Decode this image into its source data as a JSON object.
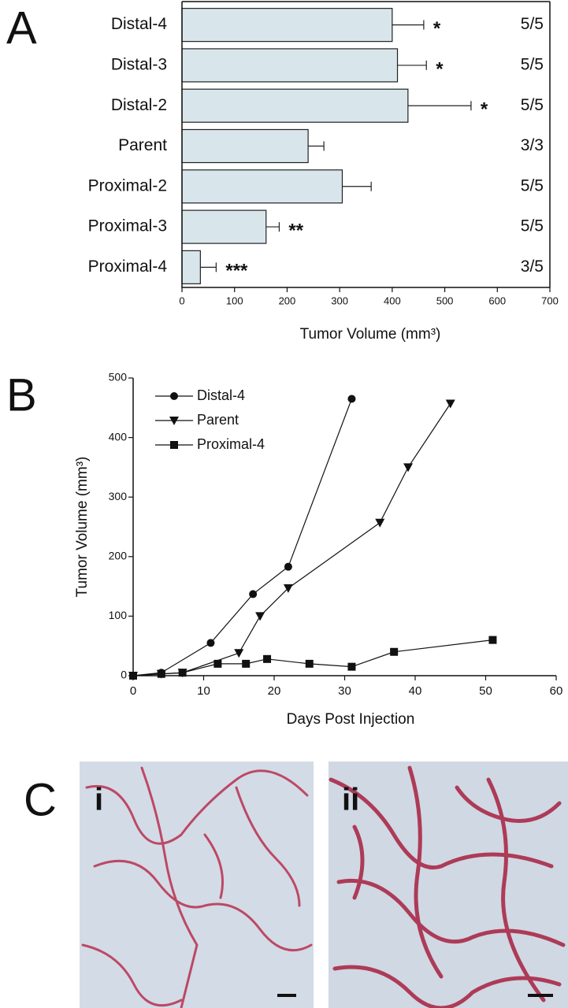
{
  "chart_data": [
    {
      "type": "hbar",
      "panel_label": "A",
      "categories": [
        "Distal-4",
        "Distal-3",
        "Distal-2",
        "Parent",
        "Proximal-2",
        "Proximal-3",
        "Proximal-4"
      ],
      "values": [
        400,
        410,
        430,
        240,
        305,
        160,
        35
      ],
      "errors": [
        60,
        55,
        120,
        30,
        55,
        25,
        30
      ],
      "significance": [
        "*",
        "*",
        "*",
        null,
        null,
        "**",
        "***"
      ],
      "fractions": [
        "5/5",
        "5/5",
        "5/5",
        "3/3",
        "5/5",
        "5/5",
        "3/5"
      ],
      "color": "#d8e6ec",
      "xlabel": "Tumor Volume (mm³)",
      "xlim": [
        0,
        700
      ],
      "xticks": [
        0,
        100,
        200,
        300,
        400,
        500,
        600,
        700
      ]
    },
    {
      "type": "line",
      "panel_label": "B",
      "xlabel": "Days Post Injection",
      "ylabel": "Tumor Volume (mm³)",
      "xlim": [
        0,
        60
      ],
      "xticks": [
        0,
        10,
        20,
        30,
        40,
        50,
        60
      ],
      "ylim": [
        0,
        500
      ],
      "yticks": [
        0,
        100,
        200,
        300,
        400,
        500
      ],
      "series": [
        {
          "name": "Distal-4",
          "marker": "circle",
          "color": "#111111",
          "x": [
            0,
            4,
            11,
            17,
            22,
            31
          ],
          "values": [
            0,
            5,
            55,
            137,
            183,
            465
          ]
        },
        {
          "name": "Parent",
          "marker": "triangle-down",
          "color": "#111111",
          "x": [
            0,
            4,
            7,
            15,
            18,
            22,
            35,
            39,
            45
          ],
          "values": [
            0,
            3,
            5,
            38,
            100,
            147,
            257,
            350,
            457
          ]
        },
        {
          "name": "Proximal-4",
          "marker": "square",
          "color": "#111111",
          "x": [
            0,
            4,
            7,
            12,
            16,
            19,
            25,
            31,
            37,
            51
          ],
          "values": [
            0,
            3,
            5,
            20,
            20,
            28,
            20,
            15,
            40,
            60
          ]
        }
      ]
    }
  ],
  "panel_c": {
    "label": "C",
    "images": [
      {
        "label": "i"
      },
      {
        "label": "ii"
      }
    ]
  }
}
